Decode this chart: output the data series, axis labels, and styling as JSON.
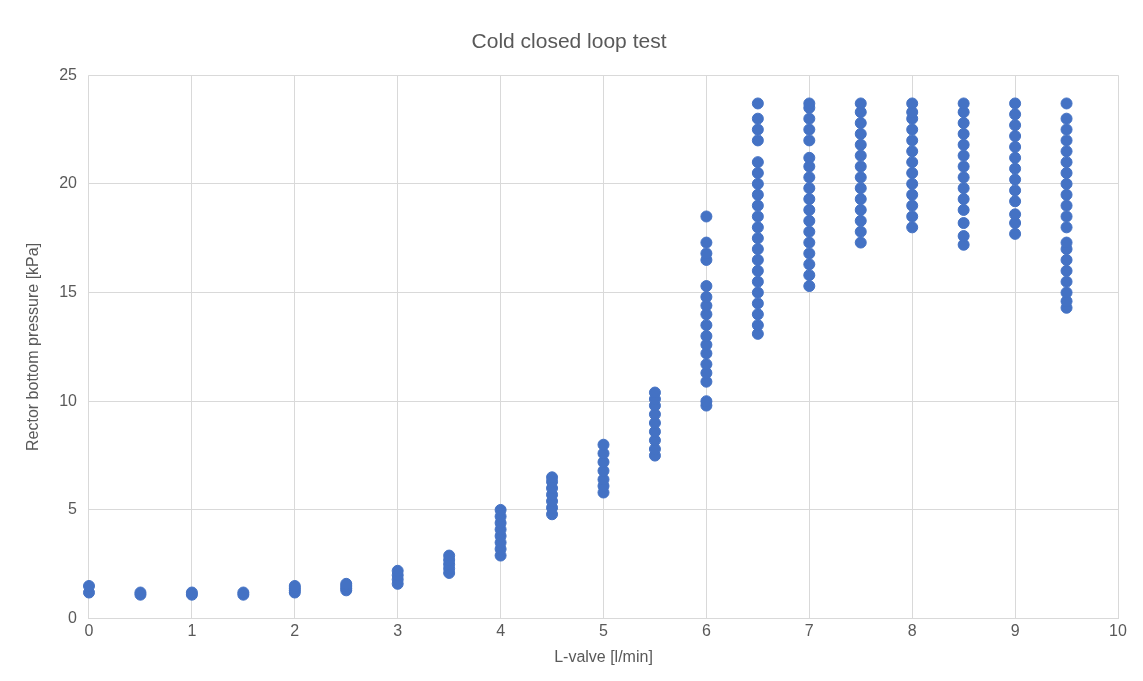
{
  "chart_data": {
    "type": "scatter",
    "title": "Cold closed loop test",
    "xlabel": "L-valve [l/min]",
    "ylabel": "Rector bottom pressure [kPa]",
    "xlim": [
      0,
      10
    ],
    "xticks": [
      0,
      1,
      2,
      3,
      4,
      5,
      6,
      7,
      8,
      9,
      10
    ],
    "ylim": [
      0,
      25
    ],
    "yticks": [
      0,
      5,
      10,
      15,
      20,
      25
    ],
    "grid": true,
    "marker": "circle",
    "series": [
      {
        "color": "#4472c4",
        "x": [
          0,
          0,
          0.5,
          0.5,
          1,
          1,
          1.5,
          1.5,
          2,
          2,
          2,
          2,
          2.5,
          2.5,
          2.5,
          2.5,
          3,
          3,
          3,
          3,
          3.5,
          3.5,
          3.5,
          3.5,
          3.5,
          4,
          4,
          4,
          4,
          4,
          4,
          4,
          4,
          4.5,
          4.5,
          4.5,
          4.5,
          4.5,
          4.5,
          4.5,
          5,
          5,
          5,
          5,
          5,
          5,
          5,
          5.5,
          5.5,
          5.5,
          5.5,
          5.5,
          5.5,
          5.5,
          5.5,
          5.5,
          6,
          6,
          6,
          6,
          6,
          6,
          6,
          6,
          6,
          6,
          6,
          6,
          6,
          6,
          6,
          6,
          6,
          6.5,
          6.5,
          6.5,
          6.5,
          6.5,
          6.5,
          6.5,
          6.5,
          6.5,
          6.5,
          6.5,
          6.5,
          6.5,
          6.5,
          6.5,
          6.5,
          6.5,
          6.5,
          6.5,
          6.5,
          6.5,
          7,
          7,
          7,
          7,
          7,
          7,
          7,
          7,
          7,
          7,
          7,
          7,
          7,
          7,
          7,
          7,
          7,
          7,
          7.5,
          7.5,
          7.5,
          7.5,
          7.5,
          7.5,
          7.5,
          7.5,
          7.5,
          7.5,
          7.5,
          7.5,
          7.5,
          7.5,
          8,
          8,
          8,
          8,
          8,
          8,
          8,
          8,
          8,
          8,
          8,
          8,
          8,
          8.5,
          8.5,
          8.5,
          8.5,
          8.5,
          8.5,
          8.5,
          8.5,
          8.5,
          8.5,
          8.5,
          8.5,
          8.5,
          8.5,
          9,
          9,
          9,
          9,
          9,
          9,
          9,
          9,
          9,
          9,
          9,
          9,
          9,
          9.5,
          9.5,
          9.5,
          9.5,
          9.5,
          9.5,
          9.5,
          9.5,
          9.5,
          9.5,
          9.5,
          9.5,
          9.5,
          9.5,
          9.5,
          9.5,
          9.5,
          9.5,
          9.5,
          9.5
        ],
        "values": [
          1.2,
          1.5,
          1.1,
          1.2,
          1.1,
          1.2,
          1.1,
          1.2,
          1.2,
          1.3,
          1.4,
          1.5,
          1.3,
          1.4,
          1.5,
          1.6,
          1.6,
          1.8,
          2.0,
          2.2,
          2.1,
          2.3,
          2.5,
          2.7,
          2.9,
          2.9,
          3.2,
          3.5,
          3.8,
          4.1,
          4.4,
          4.7,
          5.0,
          4.8,
          5.1,
          5.4,
          5.7,
          6.0,
          6.3,
          6.5,
          5.8,
          6.1,
          6.4,
          6.8,
          7.2,
          7.6,
          8.0,
          7.5,
          7.8,
          8.2,
          8.6,
          9.0,
          9.4,
          9.8,
          10.1,
          10.4,
          9.8,
          10.0,
          10.9,
          11.3,
          11.7,
          12.2,
          12.6,
          13.0,
          13.5,
          14.0,
          14.4,
          14.8,
          15.3,
          16.5,
          16.8,
          17.3,
          18.5,
          13.1,
          13.5,
          14.0,
          14.5,
          15.0,
          15.5,
          16.0,
          16.5,
          17.0,
          17.5,
          18.0,
          18.5,
          19.0,
          19.5,
          20.0,
          20.5,
          21.0,
          22.0,
          22.5,
          23.0,
          23.7,
          15.3,
          15.8,
          16.3,
          16.8,
          17.3,
          17.8,
          18.3,
          18.8,
          19.3,
          19.8,
          20.3,
          20.8,
          21.2,
          22.0,
          22.5,
          23.0,
          23.5,
          23.7,
          17.3,
          17.8,
          18.3,
          18.8,
          19.3,
          19.8,
          20.3,
          20.8,
          21.3,
          21.8,
          22.3,
          22.8,
          23.3,
          23.7,
          18.0,
          18.5,
          19.0,
          19.5,
          20.0,
          20.5,
          21.0,
          21.5,
          22.0,
          22.5,
          23.0,
          23.3,
          23.7,
          17.2,
          17.6,
          18.2,
          18.8,
          19.3,
          19.8,
          20.3,
          20.8,
          21.3,
          21.8,
          22.3,
          22.8,
          23.3,
          23.7,
          17.7,
          18.2,
          18.6,
          19.2,
          19.7,
          20.2,
          20.7,
          21.2,
          21.7,
          22.2,
          22.7,
          23.2,
          23.7,
          14.3,
          14.6,
          15.0,
          15.5,
          16.0,
          16.5,
          17.0,
          17.3,
          18.0,
          18.5,
          19.0,
          19.5,
          20.0,
          20.5,
          21.0,
          21.5,
          22.0,
          22.5,
          23.0,
          23.7
        ]
      }
    ]
  }
}
